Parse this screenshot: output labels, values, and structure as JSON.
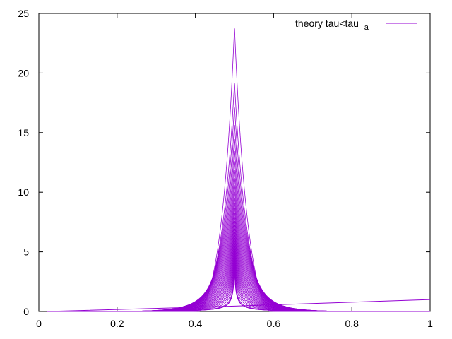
{
  "chart_data": {
    "type": "line",
    "title": "",
    "xlabel": "",
    "ylabel": "",
    "xlim": [
      0,
      1
    ],
    "ylim": [
      0,
      25
    ],
    "x_ticks": [
      0,
      0.2,
      0.4,
      0.6,
      0.8,
      1
    ],
    "x_tick_labels": [
      "0",
      "0.2",
      "0.4",
      "0.6",
      "0.8",
      "1"
    ],
    "y_ticks": [
      0,
      5,
      10,
      15,
      20,
      25
    ],
    "y_tick_labels": [
      "0",
      "5",
      "10",
      "15",
      "20",
      "25"
    ],
    "grid": false,
    "legend_position": "top-right",
    "legend": {
      "label_main": "theory tau<tau",
      "label_sub": "a"
    },
    "line_color": "#9400d3",
    "family": {
      "count": 40,
      "center_x": 0.5,
      "peak_max": 23.9,
      "peak_min": 3.4,
      "x_start": 0.02,
      "x_end": 1.0
    },
    "near_flat_line": {
      "x": [
        0.02,
        0.5,
        1.0
      ],
      "y": [
        0.0,
        0.45,
        1.0
      ]
    }
  }
}
